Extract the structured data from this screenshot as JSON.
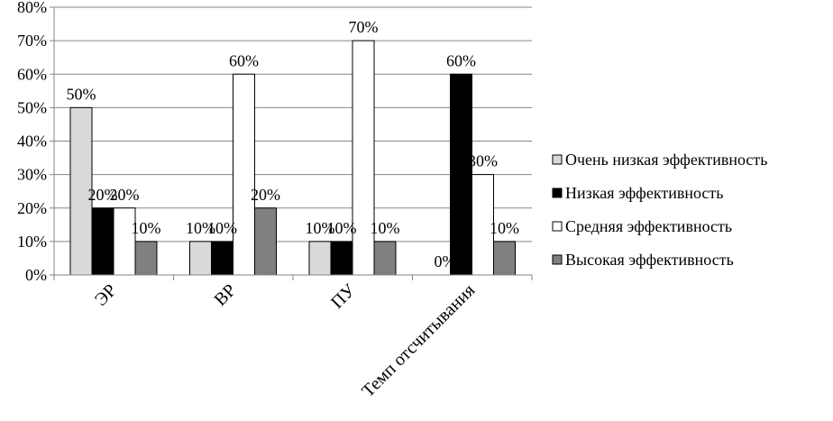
{
  "chart_data": {
    "type": "bar",
    "categories": [
      "ЭР",
      "ВР",
      "ПУ",
      "Темп отсчитывания"
    ],
    "series": [
      {
        "name": "Очень низкая эффективность",
        "color": "#d9d9d9",
        "values": [
          50,
          10,
          10,
          0
        ]
      },
      {
        "name": "Низкая эффективность",
        "color": "#000000",
        "values": [
          20,
          10,
          10,
          60
        ]
      },
      {
        "name": "Средняя эффективность",
        "color": "#ffffff",
        "values": [
          20,
          60,
          70,
          30
        ]
      },
      {
        "name": "Высокая эффективность",
        "color": "#808080",
        "values": [
          10,
          20,
          10,
          10
        ]
      }
    ],
    "data_labels": [
      [
        "50%",
        "20%",
        "20%",
        "10%"
      ],
      [
        "10%",
        "10%",
        "60%",
        "20%"
      ],
      [
        "10%",
        "10%",
        "70%",
        "10%"
      ],
      [
        "0%",
        "60%",
        "30%",
        "10%"
      ]
    ],
    "y_ticks": [
      "0%",
      "10%",
      "20%",
      "30%",
      "40%",
      "50%",
      "60%",
      "70%",
      "80%"
    ],
    "ylim": [
      0,
      80
    ],
    "grid": true,
    "legend_position": "right",
    "title": "",
    "xlabel": "",
    "ylabel": ""
  }
}
